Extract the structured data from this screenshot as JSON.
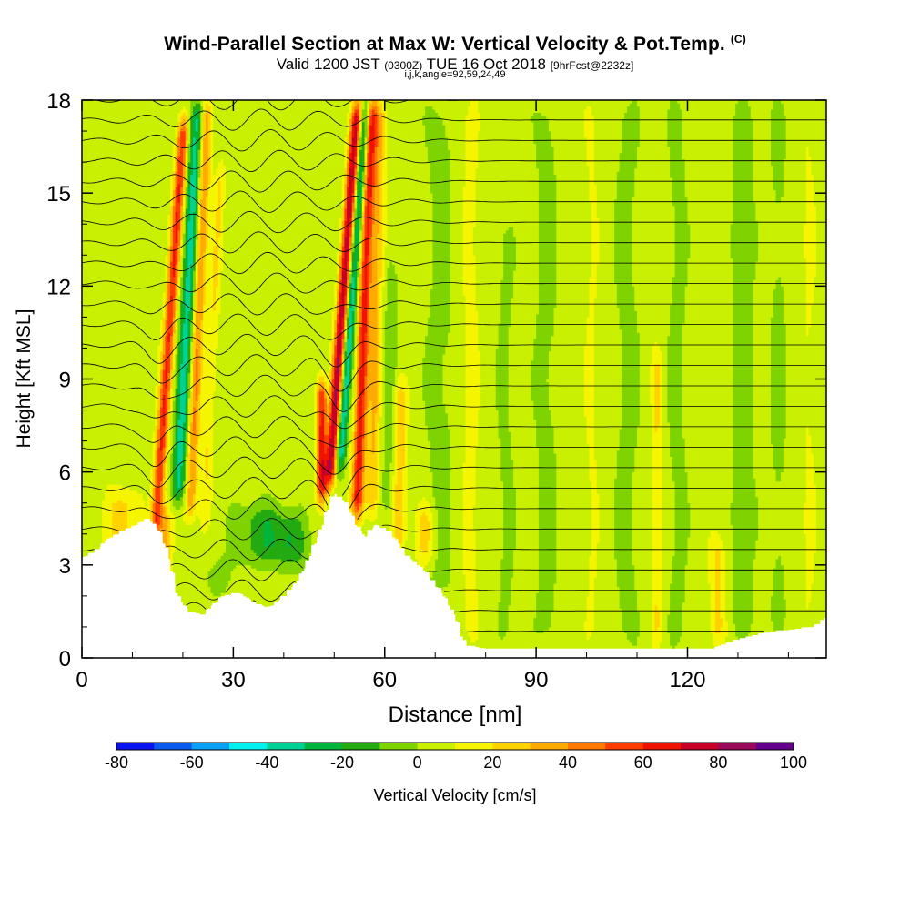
{
  "chart_data": {
    "type": "heatmap",
    "title": "Wind-Parallel Section at Max W: Vertical Velocity & Pot.Temp.",
    "title_mark": "(C)",
    "subtitle": {
      "main_a": "Valid 1200 JST",
      "utc": "(0300Z)",
      "main_b": "TUE 16 Oct 2018",
      "forecast": "[9hrFcst@2232z]"
    },
    "subtitle2": "i,j,k,angle=92,59,24,49",
    "xlabel": "Distance [nm]",
    "ylabel": "Height [Kft MSL]",
    "xlim": [
      0,
      147.5
    ],
    "ylim": [
      0,
      18
    ],
    "xticks": [
      0,
      30,
      60,
      90,
      120
    ],
    "yticks": [
      0,
      3,
      6,
      9,
      12,
      15,
      18
    ],
    "grid": false,
    "colorbar": {
      "label": "Vertical Velocity [cm/s]",
      "min": -80,
      "max": 100,
      "step": 10,
      "ticks": [
        -80,
        -60,
        -40,
        -20,
        0,
        20,
        40,
        60,
        80,
        100
      ],
      "colors": [
        "#0a14f0",
        "#0a5af0",
        "#0aa0f5",
        "#00f0f0",
        "#00d296",
        "#00b43c",
        "#22aa10",
        "#7ed300",
        "#c8f000",
        "#f5f500",
        "#ffd200",
        "#ffaa00",
        "#ff7800",
        "#ff3c00",
        "#f01400",
        "#c80028",
        "#9b0a5a",
        "#64008c"
      ]
    },
    "background_w": 5,
    "terrain": [
      [
        0,
        3.2
      ],
      [
        3,
        3.5
      ],
      [
        5,
        3.8
      ],
      [
        8,
        4.1
      ],
      [
        11,
        4.3
      ],
      [
        13,
        4.5
      ],
      [
        15,
        4.2
      ],
      [
        17,
        3.4
      ],
      [
        18,
        2.6
      ],
      [
        19,
        2
      ],
      [
        21,
        1.5
      ],
      [
        24,
        1.4
      ],
      [
        26,
        1.7
      ],
      [
        28,
        2.0
      ],
      [
        31,
        2.1
      ],
      [
        34,
        1.8
      ],
      [
        37,
        1.6
      ],
      [
        40,
        2.0
      ],
      [
        43,
        2.5
      ],
      [
        45,
        3.2
      ],
      [
        47,
        4.0
      ],
      [
        49,
        4.9
      ],
      [
        50,
        5.3
      ],
      [
        52,
        5.1
      ],
      [
        54,
        4.4
      ],
      [
        56,
        3.9
      ],
      [
        58,
        4.3
      ],
      [
        61,
        4.1
      ],
      [
        63,
        3.6
      ],
      [
        65,
        3.2
      ],
      [
        68,
        2.8
      ],
      [
        71,
        2.2
      ],
      [
        74,
        1.3
      ],
      [
        76,
        0.4
      ],
      [
        80,
        0.3
      ],
      [
        100,
        0.3
      ],
      [
        125,
        0.3
      ],
      [
        130,
        0.6
      ],
      [
        135,
        0.8
      ],
      [
        140,
        0.9
      ],
      [
        145,
        1.0
      ],
      [
        147.5,
        1.3
      ]
    ],
    "w_features": [
      {
        "x": 14.5,
        "z0": 3.8,
        "z1": 17.5,
        "lean": 0.42,
        "amp": 55,
        "width": 1.1
      },
      {
        "x": 19.0,
        "z0": 5.0,
        "z1": 18.0,
        "lean": 0.3,
        "amp": -40,
        "width": 1.3
      },
      {
        "x": 21.5,
        "z0": 4.5,
        "z1": 18.0,
        "lean": 0.25,
        "amp": 35,
        "width": 1.1
      },
      {
        "x": 24.0,
        "z0": 4.0,
        "z1": 16.0,
        "lean": 0.3,
        "amp": 15,
        "width": 1.1
      },
      {
        "x": 16.5,
        "z0": 2.5,
        "z1": 5.0,
        "lean": 0.0,
        "amp": 30,
        "width": 1.2
      },
      {
        "x": 8.0,
        "z0": 3.2,
        "z1": 5.5,
        "lean": 0.0,
        "amp": 20,
        "width": 3.0
      },
      {
        "x": 27.0,
        "z0": 2.0,
        "z1": 3.2,
        "lean": 0.0,
        "amp": -12,
        "width": 2.5
      },
      {
        "x": 36.0,
        "z0": 3.0,
        "z1": 5.0,
        "lean": 0.0,
        "amp": -22,
        "width": 5.5
      },
      {
        "x": 41.5,
        "z0": 2.8,
        "z1": 4.6,
        "lean": 0.0,
        "amp": -18,
        "width": 3.0
      },
      {
        "x": 47.5,
        "z0": 5.0,
        "z1": 9.0,
        "lean": 0.0,
        "amp": 60,
        "width": 1.0
      },
      {
        "x": 49.0,
        "z0": 5.5,
        "z1": 18.0,
        "lean": 0.45,
        "amp": 75,
        "width": 1.1
      },
      {
        "x": 51.0,
        "z0": 6.0,
        "z1": 18.0,
        "lean": 0.45,
        "amp": -45,
        "width": 1.0
      },
      {
        "x": 54.5,
        "z0": 4.5,
        "z1": 18.0,
        "lean": 0.22,
        "amp": 60,
        "width": 1.2
      },
      {
        "x": 57.5,
        "z0": 4.5,
        "z1": 18.0,
        "lean": 0.12,
        "amp": 25,
        "width": 1.2
      },
      {
        "x": 60.5,
        "z0": 4.5,
        "z1": 13.0,
        "lean": 0.1,
        "amp": -12,
        "width": 1.2
      },
      {
        "x": 63.0,
        "z0": 3.4,
        "z1": 9.0,
        "lean": 0.0,
        "amp": 22,
        "width": 1.3
      },
      {
        "x": 68.0,
        "z0": 3.0,
        "z1": 5.0,
        "lean": 0.0,
        "amp": 20,
        "width": 2.0
      },
      {
        "x": 71.0,
        "z0": 2.0,
        "z1": 18.0,
        "lean": 0.0,
        "amp": -8,
        "width": 3.0
      },
      {
        "x": 77.0,
        "z0": 0.5,
        "z1": 18.0,
        "lean": 0.0,
        "amp": 9,
        "width": 1.6
      },
      {
        "x": 84.0,
        "z0": 0.4,
        "z1": 14.0,
        "lean": 0.0,
        "amp": -7,
        "width": 1.8
      },
      {
        "x": 92.0,
        "z0": 0.4,
        "z1": 18.0,
        "lean": 0.0,
        "amp": -8,
        "width": 2.5
      },
      {
        "x": 101.0,
        "z0": 0.4,
        "z1": 18.0,
        "lean": 0.0,
        "amp": 6,
        "width": 1.5
      },
      {
        "x": 108.0,
        "z0": 0.4,
        "z1": 18.0,
        "lean": 0.0,
        "amp": -8,
        "width": 2.5
      },
      {
        "x": 114.0,
        "z0": 0.4,
        "z1": 10.0,
        "lean": 0.0,
        "amp": 15,
        "width": 1.0
      },
      {
        "x": 118.0,
        "z0": 0.4,
        "z1": 18.0,
        "lean": 0.0,
        "amp": -8,
        "width": 2.0
      },
      {
        "x": 126.0,
        "z0": 0.4,
        "z1": 4.0,
        "lean": 0.0,
        "amp": 18,
        "width": 1.5
      },
      {
        "x": 131.0,
        "z0": 0.6,
        "z1": 18.0,
        "lean": 0.0,
        "amp": -9,
        "width": 2.5
      },
      {
        "x": 138.0,
        "z0": 0.8,
        "z1": 18.0,
        "lean": 0.0,
        "amp": -7,
        "width": 2.0
      },
      {
        "x": 144.0,
        "z0": 1.0,
        "z1": 18.0,
        "lean": 0.0,
        "amp": 6,
        "width": 1.5
      }
    ],
    "theta_levels_K": [
      309,
      310,
      311,
      312,
      313,
      314,
      315,
      316,
      317,
      318,
      319,
      320,
      321,
      322,
      323,
      324,
      325,
      326,
      327,
      328,
      329,
      330,
      331,
      332,
      333,
      334,
      335,
      336
    ]
  }
}
